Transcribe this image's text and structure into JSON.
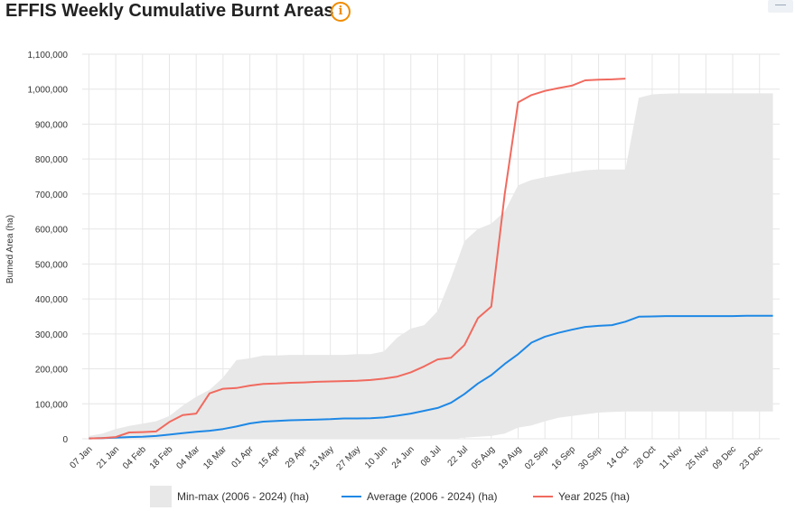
{
  "header": {
    "title": "EFFIS Weekly Cumulative Burnt Areas",
    "info_icon": "info-icon",
    "menu_icon": "menu-icon"
  },
  "colors": {
    "range_fill": "#e8e8e8",
    "average": "#1e88e5",
    "year": "#f06a5f",
    "grid": "#e6e6e6",
    "accent": "#f08c00"
  },
  "chart_data": {
    "type": "area",
    "ylabel": "Burned Area (ha)",
    "xlabel": "",
    "ylim": [
      0,
      1100000
    ],
    "yticks": [
      0,
      100000,
      200000,
      300000,
      400000,
      500000,
      600000,
      700000,
      800000,
      900000,
      1000000,
      1100000
    ],
    "ytick_labels": [
      "0",
      "100,000",
      "200,000",
      "300,000",
      "400,000",
      "500,000",
      "600,000",
      "700,000",
      "800,000",
      "900,000",
      "1,000,000",
      "1,100,000"
    ],
    "xtick_labels": [
      "07 Jan",
      "21 Jan",
      "04 Feb",
      "18 Feb",
      "04 Mar",
      "18 Mar",
      "01 Apr",
      "15 Apr",
      "29 Apr",
      "13 May",
      "27 May",
      "10 Jun",
      "24 Jun",
      "08 Jul",
      "22 Jul",
      "05 Aug",
      "19 Aug",
      "02 Sep",
      "16 Sep",
      "30 Sep",
      "14 Oct",
      "28 Oct",
      "11 Nov",
      "25 Nov",
      "09 Dec",
      "23 Dec"
    ],
    "weeks": 52,
    "grid": true,
    "legend_position": "bottom",
    "series": [
      {
        "name": "Min-max (2006 - 2024) (ha)",
        "kind": "range",
        "min": [
          0,
          0,
          0,
          0,
          0,
          0,
          0,
          0,
          0,
          0,
          0,
          0,
          0,
          0,
          0,
          0,
          0,
          0,
          0,
          0,
          0,
          0,
          0,
          0,
          0,
          0,
          0,
          0,
          3000,
          6000,
          8000,
          15000,
          32000,
          38000,
          50000,
          60000,
          65000,
          70000,
          75000,
          77000,
          78000,
          78000,
          78000,
          78000,
          78000,
          78000,
          78000,
          78000,
          78000,
          78000,
          78000,
          78000
        ],
        "max": [
          8000,
          15000,
          28000,
          37000,
          43000,
          50000,
          65000,
          95000,
          120000,
          140000,
          175000,
          225000,
          230000,
          238000,
          238000,
          240000,
          240000,
          240000,
          240000,
          240000,
          242000,
          242000,
          250000,
          290000,
          315000,
          325000,
          365000,
          460000,
          565000,
          600000,
          615000,
          650000,
          725000,
          740000,
          748000,
          755000,
          762000,
          768000,
          770000,
          770000,
          770000,
          975000,
          985000,
          987000,
          988000,
          988000,
          988000,
          988000,
          988000,
          988000,
          988000,
          988000
        ]
      },
      {
        "name": "Average (2006 - 2024) (ha)",
        "kind": "line",
        "values": [
          1000,
          2000,
          3000,
          5000,
          6000,
          8000,
          12000,
          16000,
          20000,
          23000,
          28000,
          35000,
          44000,
          49000,
          51000,
          53000,
          54000,
          55000,
          56000,
          58000,
          58000,
          59000,
          61000,
          66000,
          72000,
          80000,
          88000,
          103000,
          128000,
          158000,
          182000,
          214000,
          242000,
          275000,
          292000,
          303000,
          312000,
          320000,
          323000,
          325000,
          335000,
          349000,
          350000,
          351000,
          351000,
          351000,
          351000,
          351000,
          351000,
          352000,
          352000,
          352000
        ]
      },
      {
        "name": "Year 2025 (ha)",
        "kind": "line",
        "values": [
          1000,
          2000,
          5000,
          18000,
          19000,
          21000,
          48000,
          68000,
          72000,
          130000,
          143000,
          145000,
          152000,
          157000,
          158000,
          160000,
          161000,
          163000,
          164000,
          165000,
          166000,
          168000,
          172000,
          178000,
          190000,
          207000,
          227000,
          232000,
          268000,
          345000,
          378000,
          700000,
          962000,
          983000,
          995000,
          1003000,
          1010000,
          1025000,
          1027000,
          1028000,
          1030000
        ]
      }
    ]
  }
}
